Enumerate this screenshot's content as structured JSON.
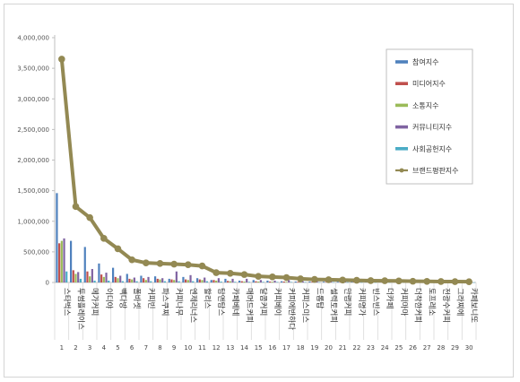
{
  "chart_data": {
    "type": "bar",
    "title": "",
    "xlabel": "",
    "ylabel": "",
    "ylim": [
      0,
      4000000
    ],
    "yticks": [
      "0",
      "500,000",
      "1,000,000",
      "1,500,000",
      "2,000,000",
      "2,500,000",
      "3,000,000",
      "3,500,000",
      "4,000,000"
    ],
    "grid": false,
    "legend_position": "top-right",
    "categories": [
      {
        "rank": "1",
        "name": "스타벅스"
      },
      {
        "rank": "2",
        "name": "투썸플레이스"
      },
      {
        "rank": "3",
        "name": "메가커피"
      },
      {
        "rank": "4",
        "name": "이디야"
      },
      {
        "rank": "5",
        "name": "빽다방"
      },
      {
        "rank": "6",
        "name": "폴바셋"
      },
      {
        "rank": "7",
        "name": "커피빈"
      },
      {
        "rank": "8",
        "name": "파스쿠찌"
      },
      {
        "rank": "9",
        "name": "커피나무"
      },
      {
        "rank": "10",
        "name": "엔제리너스"
      },
      {
        "rank": "11",
        "name": "할리스"
      },
      {
        "rank": "12",
        "name": "탐앤탐스"
      },
      {
        "rank": "13",
        "name": "카페베네"
      },
      {
        "rank": "14",
        "name": "매머드커피"
      },
      {
        "rank": "15",
        "name": "달콤커피"
      },
      {
        "rank": "16",
        "name": "커피베이"
      },
      {
        "rank": "17",
        "name": "커피에반하다"
      },
      {
        "rank": "18",
        "name": "커피스미스"
      },
      {
        "rank": "19",
        "name": "드롭탑"
      },
      {
        "rank": "20",
        "name": "셀렉토커피"
      },
      {
        "rank": "21",
        "name": "만랩커피"
      },
      {
        "rank": "22",
        "name": "커피명가"
      },
      {
        "rank": "23",
        "name": "빈스빈스"
      },
      {
        "rank": "24",
        "name": "더카페"
      },
      {
        "rank": "25",
        "name": "커피마마"
      },
      {
        "rank": "26",
        "name": "더착한커피"
      },
      {
        "rank": "27",
        "name": "토프레소"
      },
      {
        "rank": "28",
        "name": "전광수커피"
      },
      {
        "rank": "29",
        "name": "그라찌에"
      },
      {
        "rank": "30",
        "name": "카페보니또"
      }
    ],
    "series": [
      {
        "name": "참여지수",
        "kind": "bar",
        "color": "#4f81bd",
        "values": [
          1460000,
          680000,
          580000,
          310000,
          240000,
          140000,
          110000,
          100000,
          60000,
          90000,
          70000,
          40000,
          60000,
          30000,
          40000,
          30000,
          20000,
          15000,
          15000,
          12000,
          12000,
          10000,
          10000,
          8000,
          8000,
          6000,
          5000,
          5000,
          4000,
          4000
        ]
      },
      {
        "name": "미디어지수",
        "kind": "bar",
        "color": "#c0504d",
        "values": [
          640000,
          200000,
          180000,
          130000,
          90000,
          60000,
          70000,
          60000,
          50000,
          50000,
          50000,
          40000,
          25000,
          20000,
          20000,
          15000,
          15000,
          12000,
          10000,
          8000,
          8000,
          8000,
          6000,
          5000,
          5000,
          4000,
          4000,
          3000,
          3000,
          3000
        ]
      },
      {
        "name": "소통지수",
        "kind": "bar",
        "color": "#9bbb59",
        "values": [
          680000,
          140000,
          100000,
          90000,
          70000,
          50000,
          40000,
          50000,
          40000,
          40000,
          40000,
          30000,
          20000,
          15000,
          15000,
          12000,
          10000,
          10000,
          8000,
          6000,
          6000,
          5000,
          5000,
          4000,
          4000,
          3000,
          3000,
          3000,
          2000,
          2000
        ]
      },
      {
        "name": "커뮤니티지수",
        "kind": "bar",
        "color": "#8064a2",
        "values": [
          720000,
          170000,
          220000,
          160000,
          110000,
          80000,
          90000,
          70000,
          180000,
          120000,
          80000,
          70000,
          60000,
          60000,
          40000,
          30000,
          40000,
          20000,
          20000,
          15000,
          15000,
          10000,
          10000,
          8000,
          8000,
          6000,
          6000,
          5000,
          4000,
          4000
        ]
      },
      {
        "name": "사회공헌지수",
        "kind": "bar",
        "color": "#4bacc6",
        "values": [
          180000,
          60000,
          30000,
          30000,
          20000,
          20000,
          20000,
          20000,
          20000,
          20000,
          20000,
          15000,
          10000,
          10000,
          10000,
          8000,
          8000,
          6000,
          5000,
          5000,
          4000,
          4000,
          3000,
          3000,
          3000,
          2000,
          2000,
          2000,
          2000,
          2000
        ]
      },
      {
        "name": "브랜드평판지수",
        "kind": "line",
        "color": "#938953",
        "values": [
          3650000,
          1240000,
          1060000,
          720000,
          550000,
          370000,
          320000,
          310000,
          300000,
          290000,
          270000,
          160000,
          150000,
          130000,
          100000,
          90000,
          80000,
          60000,
          50000,
          45000,
          40000,
          35000,
          30000,
          28000,
          25000,
          20000,
          18000,
          15000,
          14000,
          12000
        ]
      }
    ]
  }
}
